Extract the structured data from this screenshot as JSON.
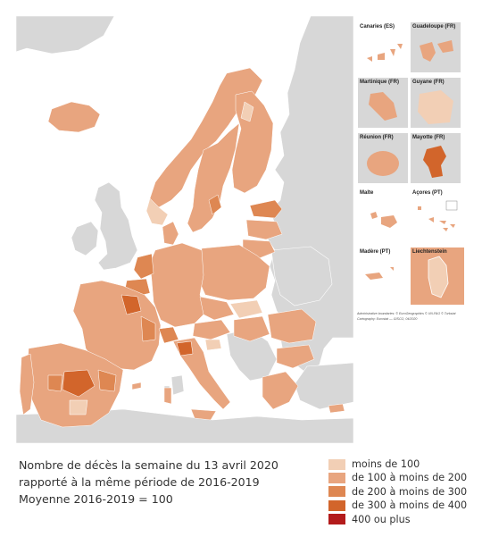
{
  "caption": {
    "line1": "Nombre de décès la semaine du 13 avril 2020",
    "line2": "rapporté à la même période de 2016-2019",
    "line3": "Moyenne 2016-2019 = 100"
  },
  "legend": [
    {
      "label": "moins de 100",
      "color": "#f2cfb5"
    },
    {
      "label": "de 100 à moins de 200",
      "color": "#e8a57f"
    },
    {
      "label": "de 200 à moins de 300",
      "color": "#de8752"
    },
    {
      "label": "de 300 à moins de 400",
      "color": "#d2652b"
    },
    {
      "label": "400 ou plus",
      "color": "#b31b1b"
    }
  ],
  "insets": [
    {
      "label": "Canaries (ES)"
    },
    {
      "label": "Guadeloupe (FR)"
    },
    {
      "label": "Martinique (FR)"
    },
    {
      "label": "Guyane (FR)"
    },
    {
      "label": "Réunion (FR)"
    },
    {
      "label": "Mayotte (FR)"
    },
    {
      "label": "Malte"
    },
    {
      "label": "Açores (PT)"
    },
    {
      "label": "Madère (PT)"
    },
    {
      "label": "Liechtenstein"
    }
  ],
  "credits": {
    "line1": "Administrative boundaries: © EuroGeographics © UN-FAO © Turkstat",
    "line2": "Cartography: Eurostat — GISCO, 04/2020"
  },
  "colors": {
    "sea": "#ffffff",
    "non_covered_land": "#d7d7d7",
    "border": "#ffffff"
  }
}
